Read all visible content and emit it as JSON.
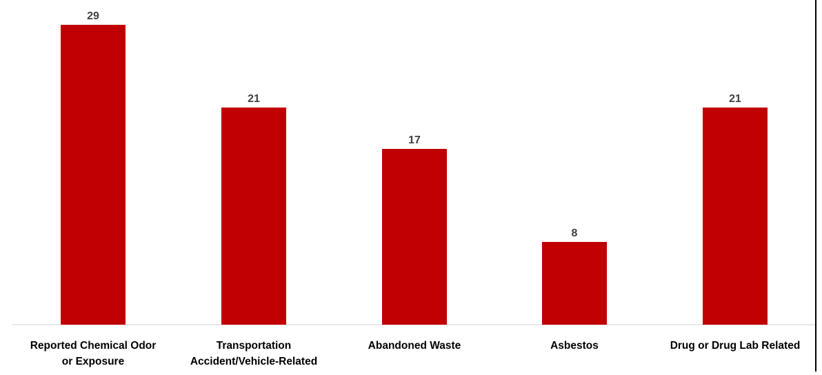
{
  "chart_data": {
    "type": "bar",
    "categories": [
      "Reported Chemical Odor or Exposure",
      "Transportation Accident/Vehicle-Related",
      "Abandoned Waste",
      "Asbestos",
      "Drug or Drug Lab Related"
    ],
    "category_lines": [
      [
        "Reported Chemical Odor",
        "or Exposure"
      ],
      [
        "Transportation",
        "Accident/Vehicle-Related"
      ],
      [
        "Abandoned Waste"
      ],
      [
        "Asbestos"
      ],
      [
        "Drug or Drug Lab Related"
      ]
    ],
    "values": [
      29,
      21,
      17,
      8,
      21
    ],
    "data_labels": [
      "29",
      "21",
      "17",
      "8",
      "21"
    ],
    "ylim": [
      0,
      29
    ],
    "grid": false,
    "legend": "none",
    "colors": {
      "bar": "#c00000",
      "data_label": "#404040",
      "category_label": "#000000",
      "axis": "#d0d0d0"
    }
  }
}
